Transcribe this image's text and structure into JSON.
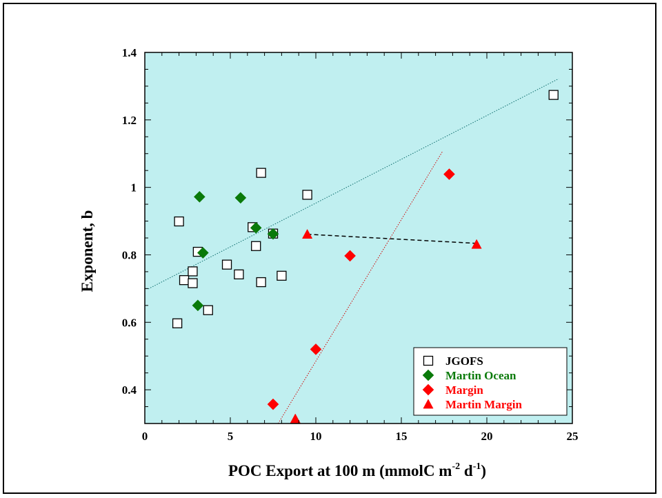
{
  "chart_data": {
    "type": "scatter",
    "xlabel": "POC Export at 100 m  (mmolC m",
    "xlabel_unit_sup1": "-2",
    "xlabel_unit_mid": " d",
    "xlabel_unit_sup2": "-1",
    "xlabel_close": ")",
    "ylabel": "Exponent, b",
    "xlim": [
      0,
      25
    ],
    "ylim": [
      0.3,
      1.4
    ],
    "xticks": [
      0,
      5,
      10,
      15,
      20,
      25
    ],
    "yticks": [
      0.4,
      0.6,
      0.8,
      1.0,
      1.2,
      1.4
    ],
    "ytick_labels": [
      "0.4",
      "0.6",
      "0.8",
      "1",
      "1.2",
      "1.4"
    ],
    "plot_background": "#c0eff0",
    "grid": false,
    "legend_position": "bottom-right",
    "series": [
      {
        "name": "JGOFS",
        "marker": "open-square",
        "color": "#000000",
        "points": [
          [
            1.9,
            0.597
          ],
          [
            2.0,
            0.899
          ],
          [
            2.3,
            0.725
          ],
          [
            2.8,
            0.751
          ],
          [
            2.8,
            0.716
          ],
          [
            3.1,
            0.809
          ],
          [
            3.7,
            0.636
          ],
          [
            4.8,
            0.771
          ],
          [
            5.5,
            0.742
          ],
          [
            6.3,
            0.882
          ],
          [
            6.5,
            0.826
          ],
          [
            6.8,
            1.043
          ],
          [
            6.8,
            0.719
          ],
          [
            7.5,
            0.863
          ],
          [
            8.0,
            0.738
          ],
          [
            9.5,
            0.978
          ],
          [
            23.9,
            1.274
          ]
        ]
      },
      {
        "name": "Martin Ocean",
        "marker": "diamond",
        "color": "#0a7a0a",
        "points": [
          [
            3.1,
            0.65
          ],
          [
            3.2,
            0.972
          ],
          [
            3.4,
            0.806
          ],
          [
            5.6,
            0.969
          ],
          [
            6.5,
            0.88
          ],
          [
            7.5,
            0.862
          ]
        ]
      },
      {
        "name": "Margin",
        "marker": "diamond",
        "color": "#ff0000",
        "points": [
          [
            7.5,
            0.357
          ],
          [
            10.0,
            0.52
          ],
          [
            12.0,
            0.797
          ],
          [
            17.8,
            1.039
          ]
        ]
      },
      {
        "name": "Martin Margin",
        "marker": "triangle",
        "color": "#ff0000",
        "points": [
          [
            8.8,
            0.314
          ],
          [
            9.5,
            0.861
          ],
          [
            19.4,
            0.831
          ]
        ]
      }
    ],
    "lines": [
      {
        "style": "dotted",
        "color": "#0a6a6a",
        "from": [
          0.2,
          0.699
        ],
        "to": [
          24.2,
          1.322
        ]
      },
      {
        "style": "dotted",
        "color": "#d00000",
        "from": [
          7.8,
          0.3
        ],
        "to": [
          17.4,
          1.106
        ]
      },
      {
        "style": "dashed",
        "color": "#000000",
        "from": [
          9.5,
          0.861
        ],
        "to": [
          19.4,
          0.834
        ]
      }
    ]
  }
}
